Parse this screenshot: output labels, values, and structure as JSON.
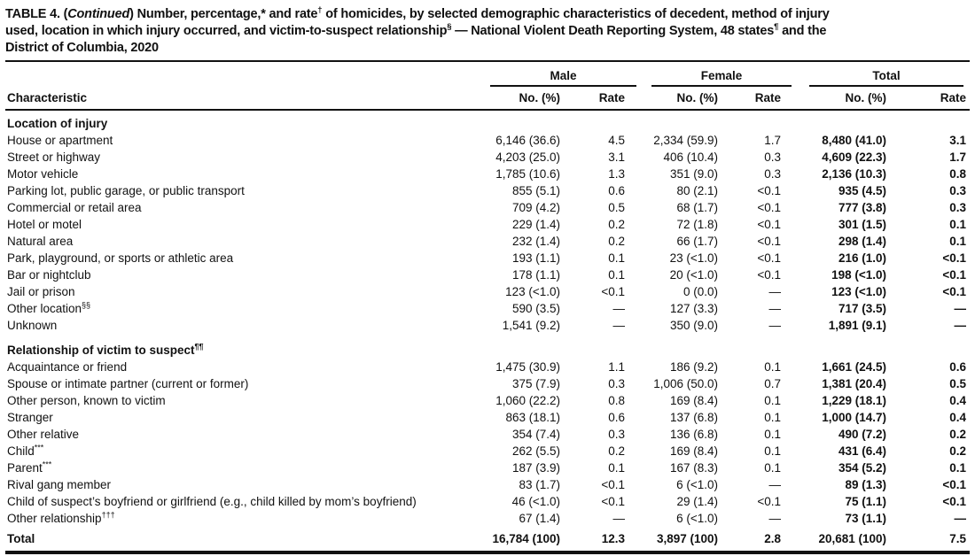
{
  "title_lines": [
    [
      {
        "text": "TABLE 4. ("
      },
      {
        "text": "Continued",
        "italic": true
      },
      {
        "text": ") Number, percentage,* and rate"
      },
      {
        "text": "†",
        "sup": true
      },
      {
        "text": " of homicides, by selected demographic characteristics of decedent, method of injury"
      }
    ],
    [
      {
        "text": "used, location in which injury occurred, and victim-to-suspect relationship"
      },
      {
        "text": "§",
        "sup": true
      },
      {
        "text": " — National Violent Death Reporting System, 48 states"
      },
      {
        "text": "¶",
        "sup": true
      },
      {
        "text": " and the"
      }
    ],
    [
      {
        "text": "District of Columbia, 2020"
      }
    ]
  ],
  "table": {
    "characteristic_header": "Characteristic",
    "groups": [
      {
        "label": "Male"
      },
      {
        "label": "Female"
      },
      {
        "label": "Total"
      }
    ],
    "sub_headers": {
      "no_pct": "No. (%)",
      "rate": "Rate"
    },
    "rows": [
      {
        "type": "section",
        "label": "Location of injury",
        "sup": ""
      },
      {
        "type": "data",
        "label": "House or apartment",
        "sup": "",
        "cells": [
          "6,146 (36.6)",
          "4.5",
          "2,334 (59.9)",
          "1.7",
          "8,480 (41.0)",
          "3.1"
        ]
      },
      {
        "type": "data",
        "label": "Street or highway",
        "sup": "",
        "cells": [
          "4,203 (25.0)",
          "3.1",
          "406 (10.4)",
          "0.3",
          "4,609 (22.3)",
          "1.7"
        ]
      },
      {
        "type": "data",
        "label": "Motor vehicle",
        "sup": "",
        "cells": [
          "1,785 (10.6)",
          "1.3",
          "351 (9.0)",
          "0.3",
          "2,136 (10.3)",
          "0.8"
        ]
      },
      {
        "type": "data",
        "label": "Parking lot, public garage, or public transport",
        "sup": "",
        "cells": [
          "855 (5.1)",
          "0.6",
          "80 (2.1)",
          "<0.1",
          "935 (4.5)",
          "0.3"
        ]
      },
      {
        "type": "data",
        "label": "Commercial or retail area",
        "sup": "",
        "cells": [
          "709 (4.2)",
          "0.5",
          "68 (1.7)",
          "<0.1",
          "777 (3.8)",
          "0.3"
        ]
      },
      {
        "type": "data",
        "label": "Hotel or motel",
        "sup": "",
        "cells": [
          "229 (1.4)",
          "0.2",
          "72 (1.8)",
          "<0.1",
          "301 (1.5)",
          "0.1"
        ]
      },
      {
        "type": "data",
        "label": "Natural area",
        "sup": "",
        "cells": [
          "232 (1.4)",
          "0.2",
          "66 (1.7)",
          "<0.1",
          "298 (1.4)",
          "0.1"
        ]
      },
      {
        "type": "data",
        "label": "Park, playground, or sports or athletic area",
        "sup": "",
        "cells": [
          "193 (1.1)",
          "0.1",
          "23 (<1.0)",
          "<0.1",
          "216 (1.0)",
          "<0.1"
        ]
      },
      {
        "type": "data",
        "label": "Bar or nightclub",
        "sup": "",
        "cells": [
          "178 (1.1)",
          "0.1",
          "20 (<1.0)",
          "<0.1",
          "198 (<1.0)",
          "<0.1"
        ]
      },
      {
        "type": "data",
        "label": "Jail or prison",
        "sup": "",
        "cells": [
          "123 (<1.0)",
          "<0.1",
          "0 (0.0)",
          "—",
          "123 (<1.0)",
          "<0.1"
        ]
      },
      {
        "type": "data",
        "label": "Other location",
        "sup": "§§",
        "cells": [
          "590 (3.5)",
          "—",
          "127 (3.3)",
          "—",
          "717 (3.5)",
          "—"
        ]
      },
      {
        "type": "data",
        "label": "Unknown",
        "sup": "",
        "cells": [
          "1,541 (9.2)",
          "—",
          "350 (9.0)",
          "—",
          "1,891 (9.1)",
          "—"
        ]
      },
      {
        "type": "section",
        "label": "Relationship of victim to suspect",
        "sup": "¶¶"
      },
      {
        "type": "data",
        "label": "Acquaintance or friend",
        "sup": "",
        "cells": [
          "1,475 (30.9)",
          "1.1",
          "186 (9.2)",
          "0.1",
          "1,661 (24.5)",
          "0.6"
        ]
      },
      {
        "type": "data",
        "label": "Spouse or intimate partner (current or former)",
        "sup": "",
        "cells": [
          "375 (7.9)",
          "0.3",
          "1,006 (50.0)",
          "0.7",
          "1,381 (20.4)",
          "0.5"
        ]
      },
      {
        "type": "data",
        "label": "Other person, known to victim",
        "sup": "",
        "cells": [
          "1,060 (22.2)",
          "0.8",
          "169 (8.4)",
          "0.1",
          "1,229 (18.1)",
          "0.4"
        ]
      },
      {
        "type": "data",
        "label": "Stranger",
        "sup": "",
        "cells": [
          "863 (18.1)",
          "0.6",
          "137 (6.8)",
          "0.1",
          "1,000 (14.7)",
          "0.4"
        ]
      },
      {
        "type": "data",
        "label": "Other relative",
        "sup": "",
        "cells": [
          "354 (7.4)",
          "0.3",
          "136 (6.8)",
          "0.1",
          "490 (7.2)",
          "0.2"
        ]
      },
      {
        "type": "data",
        "label": "Child",
        "sup": "***",
        "cells": [
          "262 (5.5)",
          "0.2",
          "169 (8.4)",
          "0.1",
          "431 (6.4)",
          "0.2"
        ]
      },
      {
        "type": "data",
        "label": "Parent",
        "sup": "***",
        "cells": [
          "187 (3.9)",
          "0.1",
          "167 (8.3)",
          "0.1",
          "354 (5.2)",
          "0.1"
        ]
      },
      {
        "type": "data",
        "label": "Rival gang member",
        "sup": "",
        "cells": [
          "83 (1.7)",
          "<0.1",
          "6 (<1.0)",
          "—",
          "89 (1.3)",
          "<0.1"
        ]
      },
      {
        "type": "data",
        "label": "Child of suspect’s boyfriend or girlfriend (e.g., child killed by mom’s boyfriend)",
        "sup": "",
        "cells": [
          "46 (<1.0)",
          "<0.1",
          "29 (1.4)",
          "<0.1",
          "75 (1.1)",
          "<0.1"
        ]
      },
      {
        "type": "data",
        "label": "Other relationship",
        "sup": "†††",
        "cells": [
          "67 (1.4)",
          "—",
          "6 (<1.0)",
          "—",
          "73 (1.1)",
          "—"
        ]
      },
      {
        "type": "total",
        "label": "Total",
        "sup": "",
        "cells": [
          "16,784 (100)",
          "12.3",
          "3,897 (100)",
          "2.8",
          "20,681 (100)",
          "7.5"
        ]
      }
    ]
  },
  "colors": {
    "text": "#111111",
    "rule": "#111111",
    "background": "#ffffff"
  }
}
